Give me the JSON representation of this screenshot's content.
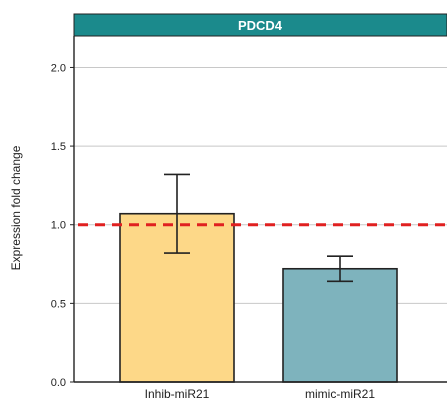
{
  "chart_data": {
    "type": "bar",
    "title": "PDCD4",
    "xlabel": "",
    "ylabel": "Expression fold change",
    "categories": [
      "Inhib-miR21",
      "mimic-miR21"
    ],
    "values": [
      1.07,
      0.72
    ],
    "errors": [
      0.25,
      0.08
    ],
    "ylim": [
      0,
      2.2
    ],
    "yticks": [
      "0.0",
      "0.5",
      "1.0",
      "1.5",
      "2.0"
    ],
    "reference_line": 1.0,
    "grid": true,
    "colors": {
      "title_bg": "#1b8a8c",
      "bars": [
        "#fdd888",
        "#7eb3bd"
      ],
      "reference": "#e02020",
      "grid": "#c8c8c8"
    }
  }
}
